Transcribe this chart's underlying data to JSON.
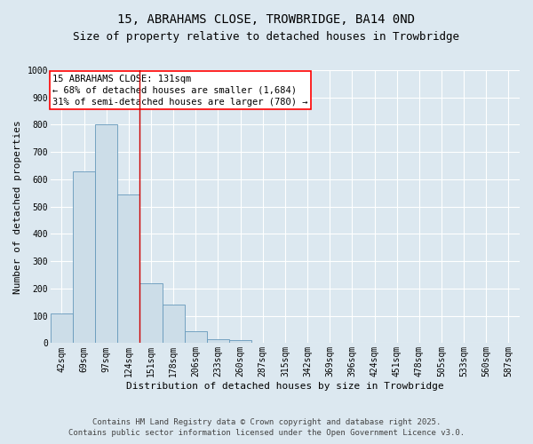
{
  "title": "15, ABRAHAMS CLOSE, TROWBRIDGE, BA14 0ND",
  "subtitle": "Size of property relative to detached houses in Trowbridge",
  "xlabel": "Distribution of detached houses by size in Trowbridge",
  "ylabel": "Number of detached properties",
  "categories": [
    "42sqm",
    "69sqm",
    "97sqm",
    "124sqm",
    "151sqm",
    "178sqm",
    "206sqm",
    "233sqm",
    "260sqm",
    "287sqm",
    "315sqm",
    "342sqm",
    "369sqm",
    "396sqm",
    "424sqm",
    "451sqm",
    "478sqm",
    "505sqm",
    "533sqm",
    "560sqm",
    "587sqm"
  ],
  "values": [
    110,
    630,
    800,
    545,
    220,
    140,
    45,
    15,
    10,
    0,
    0,
    0,
    0,
    0,
    0,
    0,
    0,
    0,
    0,
    0,
    0
  ],
  "bar_color": "#ccdde8",
  "bar_edge_color": "#6699bb",
  "ylim": [
    0,
    1000
  ],
  "yticks": [
    0,
    100,
    200,
    300,
    400,
    500,
    600,
    700,
    800,
    900,
    1000
  ],
  "red_line_index": 3,
  "annotation_title": "15 ABRAHAMS CLOSE: 131sqm",
  "annotation_line1": "← 68% of detached houses are smaller (1,684)",
  "annotation_line2": "31% of semi-detached houses are larger (780) →",
  "footer1": "Contains HM Land Registry data © Crown copyright and database right 2025.",
  "footer2": "Contains public sector information licensed under the Open Government Licence v3.0.",
  "background_color": "#dce8f0",
  "plot_bg_color": "#dce8f0",
  "grid_color": "#ffffff",
  "title_fontsize": 10,
  "subtitle_fontsize": 9,
  "axis_label_fontsize": 8,
  "tick_fontsize": 7,
  "annotation_fontsize": 7.5,
  "footer_fontsize": 6.5
}
